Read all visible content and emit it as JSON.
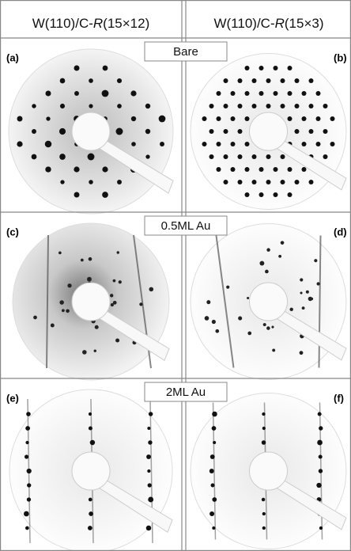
{
  "columns": [
    {
      "prefix": "W(110)/C-",
      "italic": "R",
      "suffix": "(15×12)"
    },
    {
      "prefix": "W(110)/C-",
      "italic": "R",
      "suffix": "(15×3)"
    }
  ],
  "rows": [
    {
      "label": "Bare",
      "panels": [
        "(a)",
        "(b)"
      ]
    },
    {
      "label": "0.5ML Au",
      "panels": [
        "(c)",
        "(d)"
      ]
    },
    {
      "label": "2ML Au",
      "panels": [
        "(e)",
        "(f)"
      ]
    }
  ]
}
